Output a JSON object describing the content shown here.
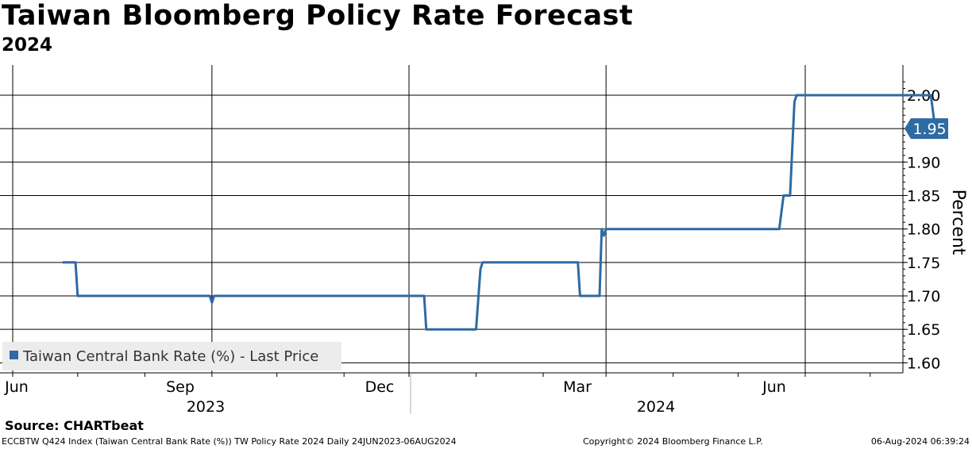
{
  "header": {
    "title": "Taiwan Bloomberg Policy Rate Forecast",
    "subtitle": "2024"
  },
  "chart_data": {
    "type": "line",
    "title": "Taiwan Bloomberg Policy Rate Forecast",
    "subtitle": "2024",
    "ylabel": "Percent",
    "xlabel": "",
    "ylim": [
      1.585,
      2.045
    ],
    "yticks": [
      "1.60",
      "1.65",
      "1.70",
      "1.75",
      "1.80",
      "1.85",
      "1.90",
      "1.95",
      "2.00"
    ],
    "x_tick_labels": [
      "Jun",
      "Sep",
      "Dec",
      "Mar",
      "Jun"
    ],
    "x_year_labels": [
      "2023",
      "2024"
    ],
    "grid": true,
    "legend": {
      "position": "bottom-left",
      "label": "Taiwan Central Bank Rate (%) - Last Price"
    },
    "last_value_label": "1.95",
    "color": "#2e6aa3",
    "series": [
      {
        "name": "Taiwan Central Bank Rate (%) - Last Price",
        "points": [
          [
            "2023-06-24",
            1.75
          ],
          [
            "2023-06-30",
            1.75
          ],
          [
            "2023-07-01",
            1.7
          ],
          [
            "2023-08-31",
            1.7
          ],
          [
            "2023-09-01",
            1.69
          ],
          [
            "2023-09-02",
            1.7
          ],
          [
            "2023-12-08",
            1.7
          ],
          [
            "2023-12-09",
            1.65
          ],
          [
            "2024-01-01",
            1.65
          ],
          [
            "2024-01-03",
            1.74
          ],
          [
            "2024-01-04",
            1.75
          ],
          [
            "2024-02-17",
            1.75
          ],
          [
            "2024-02-18",
            1.7
          ],
          [
            "2024-02-27",
            1.7
          ],
          [
            "2024-02-28",
            1.8
          ],
          [
            "2024-02-29",
            1.79
          ],
          [
            "2024-03-01",
            1.8
          ],
          [
            "2024-05-20",
            1.8
          ],
          [
            "2024-05-22",
            1.85
          ],
          [
            "2024-05-25",
            1.85
          ],
          [
            "2024-05-27",
            1.99
          ],
          [
            "2024-05-28",
            2.0
          ],
          [
            "2024-07-29",
            2.0
          ],
          [
            "2024-07-31",
            1.95
          ],
          [
            "2024-08-02",
            1.95
          ]
        ]
      }
    ]
  },
  "footer": {
    "source": "Source: CHARTbeat",
    "description": "ECCBTW Q424 Index (Taiwan Central Bank Rate (%)) TW Policy Rate 2024  Daily 24JUN2023-06AUG2024",
    "copyright": "Copyright© 2024 Bloomberg Finance L.P.",
    "timestamp": "06-Aug-2024 06:39:24"
  }
}
